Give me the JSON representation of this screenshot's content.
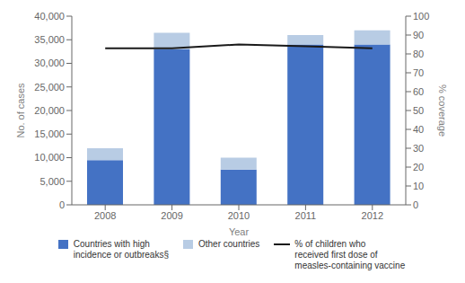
{
  "chart_data": {
    "type": "bar",
    "stacked": true,
    "legend": "bottom",
    "grid": false,
    "xlabel": "Year",
    "ylabel": "No. of cases",
    "y2label": "% coverage",
    "categories": [
      "2008",
      "2009",
      "2010",
      "2011",
      "2012"
    ],
    "series": [
      {
        "name": "Countries with high\nincidence or outbreaks§",
        "color": "#4472C4",
        "values": [
          9500,
          33000,
          7500,
          34000,
          34000
        ]
      },
      {
        "name": "Other countries",
        "color": "#B8CCE4",
        "values": [
          2500,
          3500,
          2500,
          2000,
          3000
        ]
      },
      {
        "name": "% of children who\nreceived first dose of\nmeasles-containing vaccine",
        "type": "line",
        "axis": "y2",
        "color": "#1A1A1A",
        "values": [
          83,
          83,
          85,
          84,
          83
        ]
      }
    ],
    "ylim": [
      0,
      40000
    ],
    "yticks": [
      0,
      {
        "value": 5000,
        "label": "5,000"
      },
      {
        "value": 10000,
        "label": "10,000"
      },
      {
        "value": 15000,
        "label": "15,000"
      },
      {
        "value": 20000,
        "label": "20,000"
      },
      {
        "value": 25000,
        "label": "25,000"
      },
      {
        "value": 30000,
        "label": "30,000"
      },
      {
        "value": 35000,
        "label": "35,000"
      },
      {
        "value": 40000,
        "label": "40,000"
      }
    ],
    "y2lim": [
      0,
      100
    ],
    "y2ticks": [
      0,
      10,
      20,
      30,
      40,
      50,
      60,
      70,
      80,
      90,
      100
    ]
  }
}
